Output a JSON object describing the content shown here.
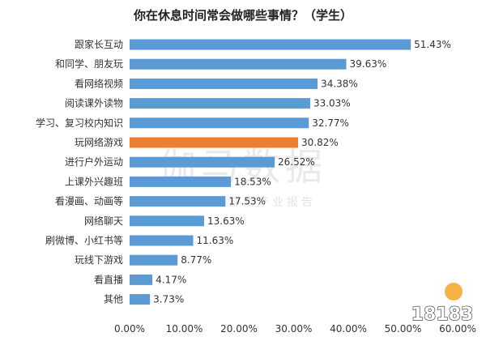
{
  "chart_data": {
    "type": "bar",
    "orientation": "horizontal",
    "title": "你在休息时间常会做哪些事情？（学生）",
    "xlabel": "",
    "ylabel": "",
    "xlim": [
      0,
      60
    ],
    "x_ticks": [
      "0.00%",
      "10.00%",
      "20.00%",
      "30.00%",
      "40.00%",
      "50.00%",
      "60.00%"
    ],
    "grid": false,
    "legend": "none",
    "categories": [
      "跟家长互动",
      "和同学、朋友玩",
      "看网络视频",
      "阅读课外读物",
      "学习、复习校内知识",
      "玩网络游戏",
      "进行户外运动",
      "上课外兴趣班",
      "看漫画、动画等",
      "网络聊天",
      "刷微博、小红书等",
      "玩线下游戏",
      "看直播",
      "其他"
    ],
    "values": [
      51.43,
      39.63,
      34.38,
      33.03,
      32.77,
      30.82,
      26.52,
      18.53,
      17.53,
      13.63,
      11.63,
      8.77,
      4.17,
      3.73
    ],
    "value_labels": [
      "51.43%",
      "39.63%",
      "34.38%",
      "33.03%",
      "32.77%",
      "30.82%",
      "26.52%",
      "18.53%",
      "17.53%",
      "13.63%",
      "11.63%",
      "8.77%",
      "4.17%",
      "3.73%"
    ],
    "highlight_index": 5,
    "colors": {
      "bar": "#5b9bd5",
      "highlight": "#ed7d31"
    }
  },
  "watermark": {
    "main": "伽马数据",
    "sub": "微信号：游戏产业报告"
  },
  "logo": {
    "text": "18183"
  }
}
